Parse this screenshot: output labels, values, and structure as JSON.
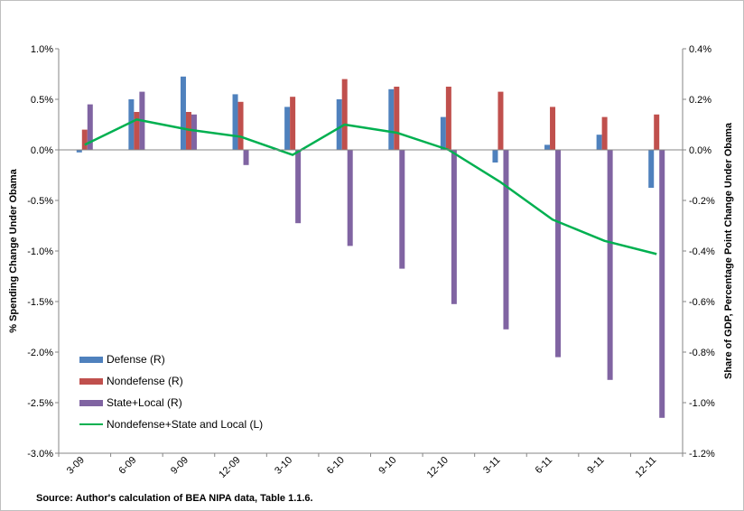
{
  "chart_data": {
    "type": "bar",
    "categories": [
      "3-09",
      "6-09",
      "9-09",
      "12-09",
      "3-10",
      "6-10",
      "9-10",
      "12-10",
      "3-11",
      "6-11",
      "9-11",
      "12-11"
    ],
    "bar_series": [
      {
        "name": "Defense (R)",
        "color": "#4f81bd",
        "values": [
          -0.01,
          0.2,
          0.29,
          0.22,
          0.17,
          0.2,
          0.24,
          0.13,
          -0.05,
          0.02,
          0.06,
          -0.15
        ]
      },
      {
        "name": "Nondefense (R)",
        "color": "#c0504d",
        "values": [
          0.08,
          0.15,
          0.15,
          0.19,
          0.21,
          0.28,
          0.25,
          0.25,
          0.23,
          0.17,
          0.13,
          0.14
        ]
      },
      {
        "name": "State+Local (R)",
        "color": "#8064a2",
        "values": [
          0.18,
          0.23,
          0.14,
          -0.06,
          -0.29,
          -0.38,
          -0.47,
          -0.61,
          -0.71,
          -0.82,
          -0.91,
          -1.06
        ]
      }
    ],
    "line_series": [
      {
        "name": "Nondefense+State and Local (L)",
        "color": "#00b050",
        "values": [
          0.05,
          0.3,
          0.2,
          0.13,
          -0.05,
          0.25,
          0.17,
          0.0,
          -0.32,
          -0.69,
          -0.9,
          -1.03
        ]
      }
    ],
    "y_left": {
      "label": "% Spending Change Under Obama",
      "min": -3.0,
      "max": 1.0,
      "step": 0.5,
      "ticks": [
        "1.0%",
        "0.5%",
        "0.0%",
        "-0.5%",
        "-1.0%",
        "-1.5%",
        "-2.0%",
        "-2.5%",
        "-3.0%"
      ]
    },
    "y_right": {
      "label": "Share of GDP, Percentage Point Change Under Obama",
      "min": -1.2,
      "max": 0.4,
      "step": 0.2,
      "ticks": [
        "0.4%",
        "0.2%",
        "0.0%",
        "-0.2%",
        "-0.4%",
        "-0.6%",
        "-0.8%",
        "-1.0%",
        "-1.2%"
      ]
    },
    "legend_position": "lower-left",
    "grid": false
  },
  "source": "Source: Author's calculation of BEA NIPA data, Table 1.1.6."
}
